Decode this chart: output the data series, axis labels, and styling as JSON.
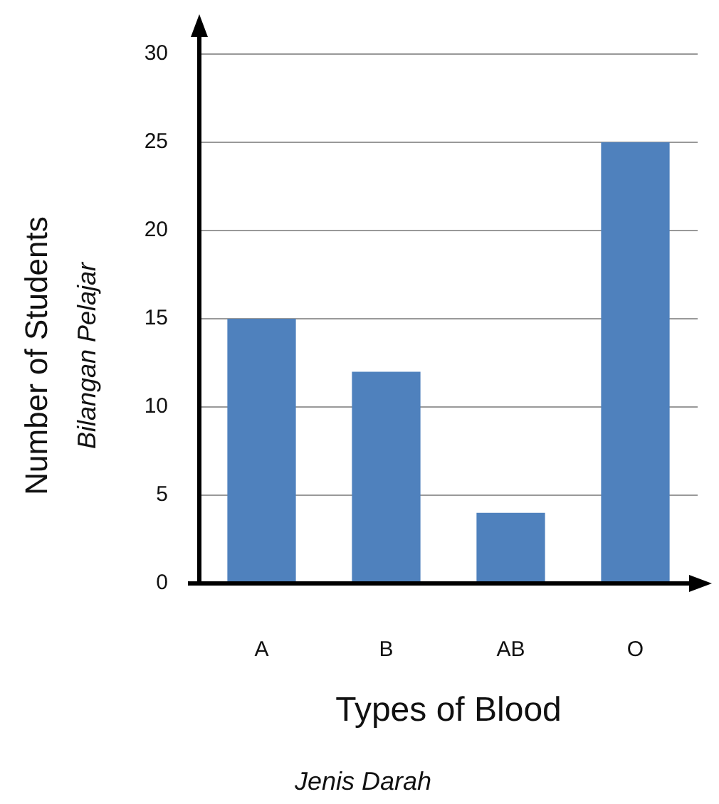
{
  "chart_data": {
    "type": "bar",
    "categories": [
      "A",
      "B",
      "AB",
      "O"
    ],
    "values": [
      15,
      12,
      4,
      25
    ],
    "color": "#4f81bd",
    "xlabel": "Types of Blood",
    "ylabel": "Number of Students",
    "annotations": [
      "Bilangan Pelajar",
      "Jenis Darah"
    ],
    "ylim": [
      0,
      30
    ],
    "yticks": [
      0,
      5,
      10,
      15,
      20,
      25,
      30
    ],
    "grid": "y",
    "legend": false
  }
}
